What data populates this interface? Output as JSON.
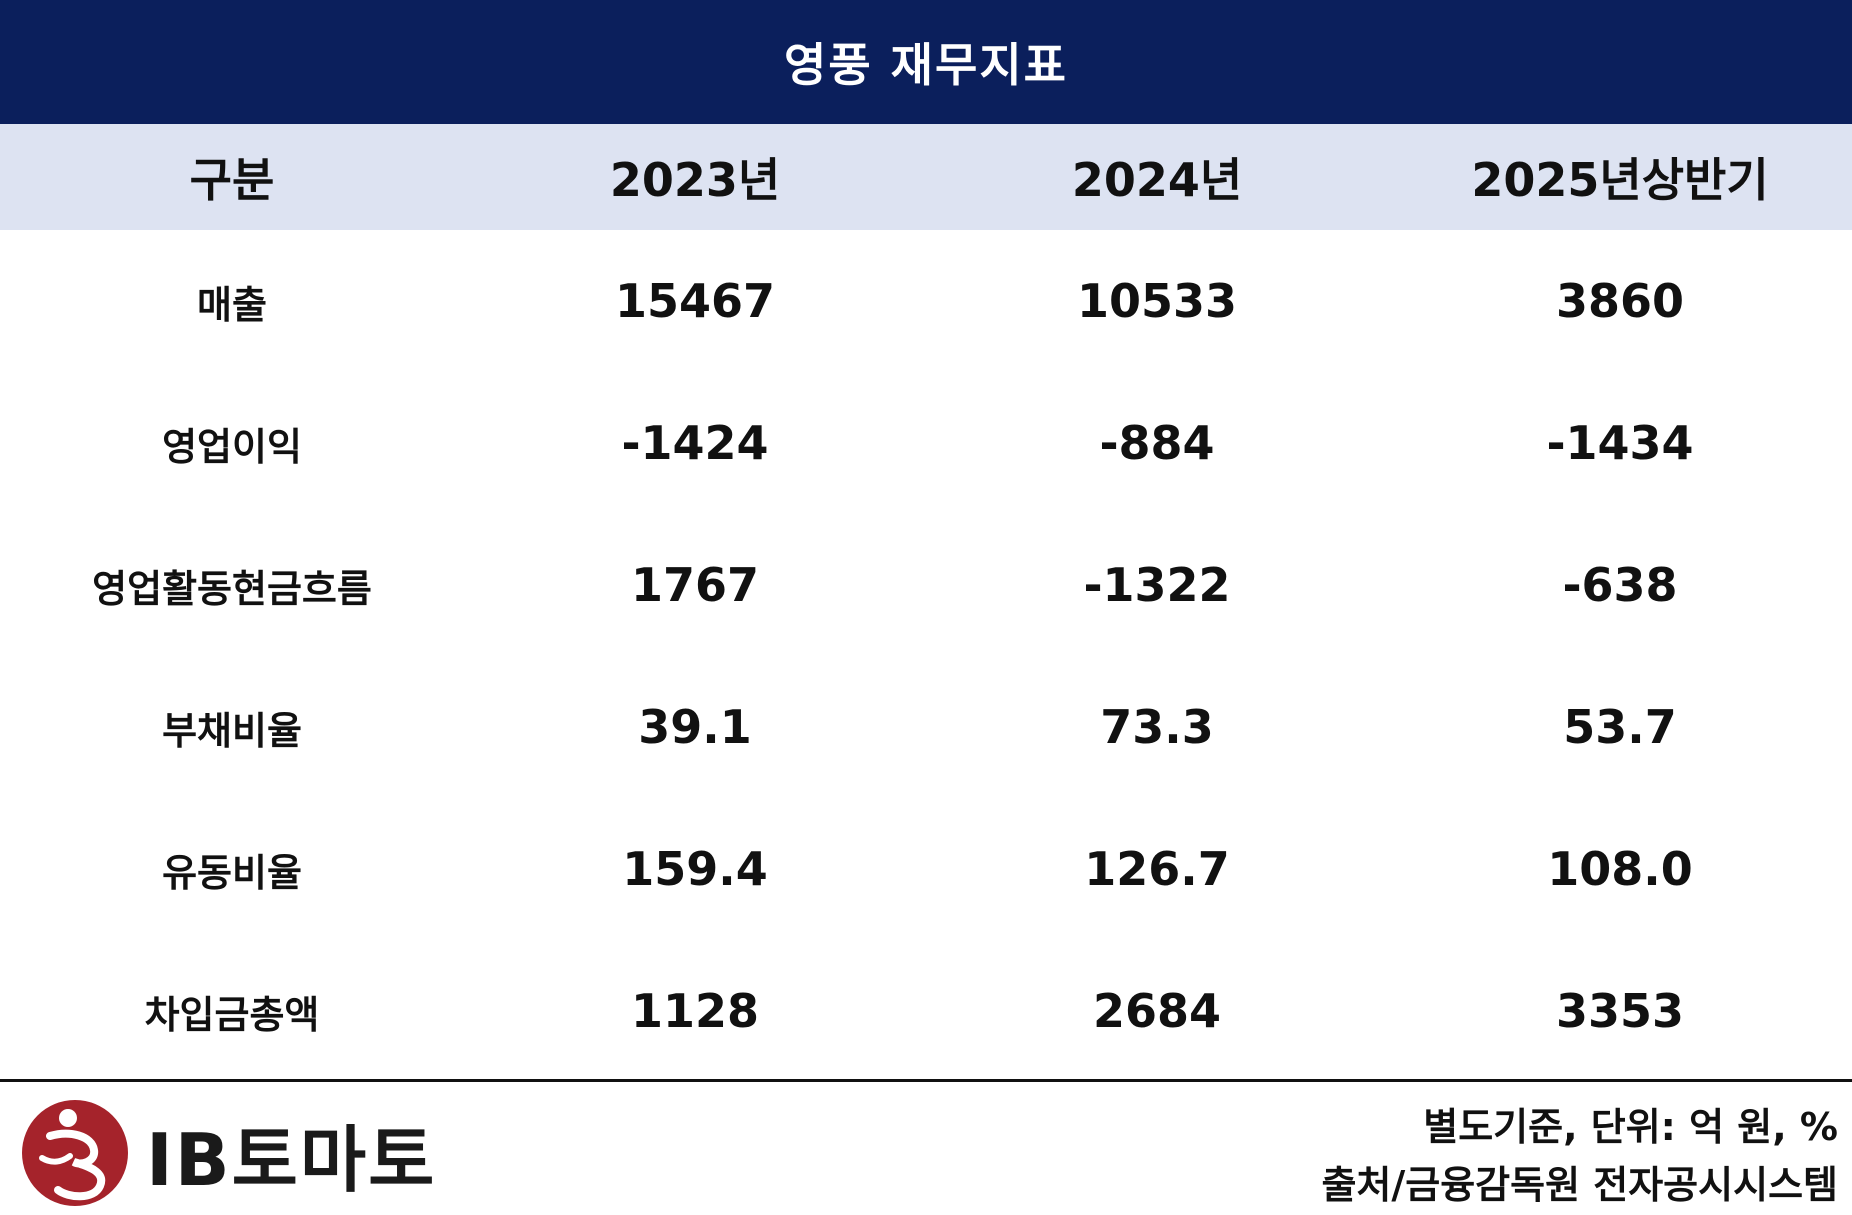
{
  "title": "영풍 재무지표",
  "headers": [
    "구분",
    "2023년",
    "2024년",
    "2025년상반기"
  ],
  "rows": [
    {
      "label": "매출",
      "values": [
        "15467",
        "10533",
        "3860"
      ]
    },
    {
      "label": "영업이익",
      "values": [
        "-1424",
        "-884",
        "-1434"
      ]
    },
    {
      "label": "영업활동현금흐름",
      "values": [
        "1767",
        "-1322",
        "-638"
      ]
    },
    {
      "label": "부채비율",
      "values": [
        "39.1",
        "73.3",
        "53.7"
      ]
    },
    {
      "label": "유동비율",
      "values": [
        "159.4",
        "126.7",
        "108.0"
      ]
    },
    {
      "label": "차입금총액",
      "values": [
        "1128",
        "2684",
        "3353"
      ]
    }
  ],
  "footer": {
    "logo_text": "IB토마토",
    "logo_icon": "ib-tomato-logo-icon",
    "basis_note": "별도기준, 단위: 억 원, %",
    "source_note": "출처/금융감독원 전자공시시스템"
  },
  "colors": {
    "title_bg": "#0b1f5c",
    "header_bg": "#dde3f2",
    "logo_red": "#a5232b"
  }
}
